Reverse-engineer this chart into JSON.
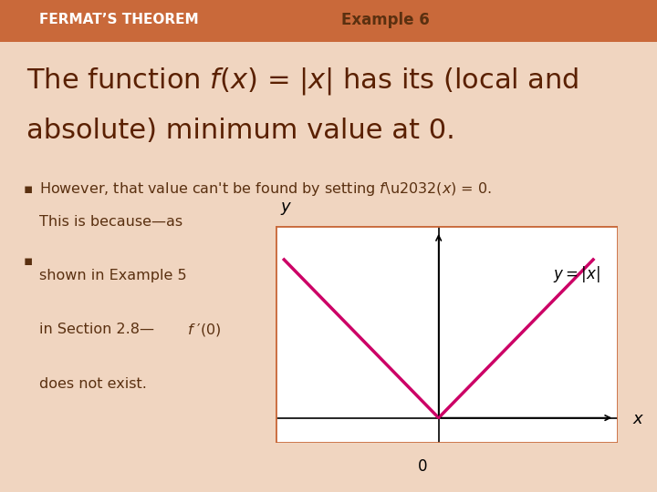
{
  "bg_color": "#f0d5c0",
  "header_bar_color": "#c9693a",
  "header_bar_height": 0.085,
  "fermat_text": "FERMAT’S THEOREM",
  "example_text": "Example 6",
  "fermat_color": "#c0392b",
  "example_color": "#5a3010",
  "title_line1": "The function ",
  "title_fx": "f",
  "title_x1": "(",
  "title_x2": "x",
  "title_x3": ")",
  "title_rest1": " = |x| has its (local and",
  "title_line2": "absolute) minimum value at 0.",
  "title_color": "#5a2000",
  "bullet1": "However, that value can’t be found by setting ",
  "bullet1_italic": "f ′(",
  "bullet1_x": "x",
  "bullet1_end": ") = 0.",
  "bullet2_line1": "This is because—as",
  "bullet2_line2": "shown in Example 5",
  "bullet2_line3": "in Section 2.8—",
  "bullet2_italic": "f ′",
  "bullet2_end": "(0)",
  "bullet2_line4": "does not exist.",
  "bullet_color": "#5a3010",
  "plot_line_color": "#cc0066",
  "plot_bg": "#ffffff",
  "plot_border_color": "#c9693a",
  "axis_color": "#000000",
  "label_color": "#000000"
}
